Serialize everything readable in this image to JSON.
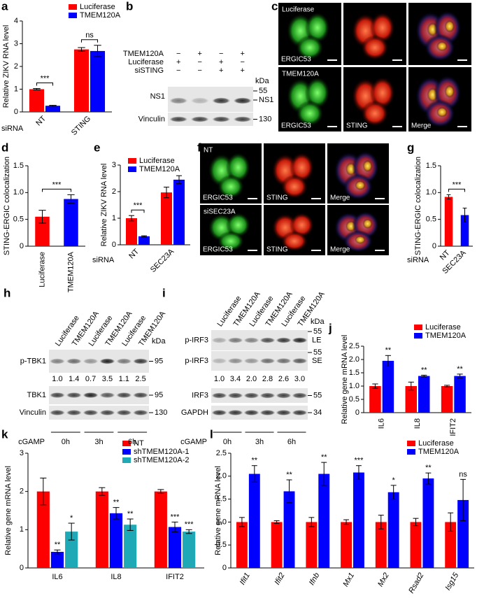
{
  "chart_data": [
    {
      "type": "bar",
      "panel": "a",
      "ylabel": "Relative ZIKV RNA level",
      "xlabel": "siRNA",
      "categories": [
        "NT",
        "STING"
      ],
      "series": [
        {
          "name": "Luciferase",
          "color": "#ff0000",
          "values": [
            1.0,
            2.75
          ],
          "errors": [
            0.03,
            0.08
          ]
        },
        {
          "name": "TMEM120A",
          "color": "#0000ff",
          "values": [
            0.27,
            2.68
          ],
          "errors": [
            0.02,
            0.25
          ]
        }
      ],
      "ylim": [
        0,
        4
      ],
      "yticks": [
        0,
        1,
        2,
        3,
        4
      ],
      "brackets": [
        "***",
        "ns"
      ]
    },
    {
      "type": "bar",
      "panel": "d",
      "ylabel": "STING-ERGIC colocalization",
      "categories": [
        "Luciferase",
        "TMEM120A"
      ],
      "values": [
        0.55,
        0.88
      ],
      "colors": [
        "#ff0000",
        "#0000ff"
      ],
      "errors": [
        0.12,
        0.08
      ],
      "ylim": [
        0,
        1.5
      ],
      "yticks": [
        0,
        0.5,
        {
          "value": 1,
          "label": "1.0"
        },
        1.5
      ],
      "bracket": "***"
    },
    {
      "type": "bar",
      "panel": "e",
      "ylabel": "Relative ZIKV RNA level",
      "xlabel": "siRNA",
      "categories": [
        "NT",
        "SEC23A"
      ],
      "series": [
        {
          "name": "Luciferase",
          "color": "#ff0000",
          "values": [
            1.0,
            1.97
          ],
          "errors": [
            0.1,
            0.2
          ]
        },
        {
          "name": "TMEM120A",
          "color": "#0000ff",
          "values": [
            0.32,
            2.45
          ],
          "errors": [
            0.02,
            0.15
          ]
        }
      ],
      "ylim": [
        0,
        3
      ],
      "yticks": [
        0,
        1,
        2,
        3
      ],
      "brackets": [
        "***"
      ]
    },
    {
      "type": "bar",
      "panel": "g",
      "ylabel": "STING-ERGIC colocalization",
      "xlabel": "siRNA",
      "categories": [
        "NT",
        "SEC23A"
      ],
      "values": [
        0.92,
        0.58
      ],
      "colors": [
        "#ff0000",
        "#0000ff"
      ],
      "errors": [
        0.04,
        0.13
      ],
      "ylim": [
        0,
        1.5
      ],
      "yticks": [
        0,
        0.5,
        {
          "value": 1,
          "label": "1.0"
        },
        1.5
      ],
      "bracket": "***"
    },
    {
      "type": "bar",
      "panel": "j",
      "ylabel": "Relative gene mRNA level",
      "categories": [
        "IL6",
        "IL8",
        "IFIT2"
      ],
      "series": [
        {
          "name": "Luciferase",
          "color": "#ff0000",
          "values": [
            1.0,
            1.0,
            1.0
          ],
          "errors": [
            0.08,
            0.15,
            0.03
          ]
        },
        {
          "name": "TMEM120A",
          "color": "#0000ff",
          "values": [
            1.95,
            1.38,
            1.38
          ],
          "errors": [
            0.2,
            0.03,
            0.07
          ],
          "stars": [
            "**",
            "**",
            "**"
          ]
        }
      ],
      "ylim": [
        0,
        2.5
      ],
      "yticks": [
        0,
        0.5,
        {
          "value": 1,
          "label": "1.0"
        },
        1.5,
        {
          "value": 2,
          "label": "2.0"
        },
        2.5
      ]
    },
    {
      "type": "bar",
      "panel": "k",
      "ylabel": "Relative gene mRNA level",
      "categories": [
        "IL6",
        "IL8",
        "IFIT2"
      ],
      "series": [
        {
          "name": "NT",
          "color": "#ff0000",
          "values": [
            2.0,
            2.0,
            2.0
          ],
          "errors": [
            0.35,
            0.1,
            0.05
          ]
        },
        {
          "name": "shTMEM120A-1",
          "color": "#0000ff",
          "values": [
            0.42,
            1.43,
            1.07
          ],
          "errors": [
            0.05,
            0.15,
            0.13
          ],
          "stars": [
            "**",
            "**",
            "***"
          ]
        },
        {
          "name": "shTMEM120A-2",
          "color": "#1fa8b5",
          "values": [
            0.95,
            1.13,
            0.95
          ],
          "errors": [
            0.22,
            0.15,
            0.05
          ],
          "stars": [
            "*",
            "**",
            "***"
          ]
        }
      ],
      "ylim": [
        0,
        3
      ],
      "yticks": [
        0,
        1,
        2,
        3
      ]
    },
    {
      "type": "bar",
      "panel": "l",
      "ylabel": "Relative gene mRNA level",
      "italic_categories": true,
      "categories": [
        "Ifit1",
        "Ifit2",
        "Ifnb",
        "Mx1",
        "Mx2",
        "Rsad2",
        "Isg15"
      ],
      "series": [
        {
          "name": "Luciferase",
          "color": "#ff0000",
          "values": [
            1,
            1,
            1,
            1,
            1,
            1,
            1
          ],
          "errors": [
            0.1,
            0.03,
            0.1,
            0.05,
            0.15,
            0.08,
            0.2
          ]
        },
        {
          "name": "TMEM120A",
          "color": "#0000ff",
          "values": [
            2.05,
            1.67,
            2.05,
            2.08,
            1.65,
            1.95,
            1.48
          ],
          "errors": [
            0.18,
            0.25,
            0.25,
            0.15,
            0.15,
            0.12,
            0.45
          ],
          "stars": [
            "**",
            "**",
            "**",
            "***",
            "*",
            "**",
            "ns"
          ]
        }
      ],
      "ylim": [
        0,
        2.5
      ],
      "yticks": [
        0,
        0.5,
        {
          "value": 1,
          "label": "1.0"
        },
        1.5,
        {
          "value": 2,
          "label": "2.0"
        },
        2.5
      ]
    }
  ],
  "blot_b": {
    "panel": "b",
    "conditions": [
      {
        "label": "TMEM120A",
        "signs": [
          "−",
          "+",
          "−",
          "+"
        ]
      },
      {
        "label": "Luciferase",
        "signs": [
          "+",
          "−",
          "+",
          "−"
        ]
      },
      {
        "label": "siSTING",
        "signs": [
          "−",
          "−",
          "+",
          "+"
        ]
      }
    ],
    "unit": "kDa",
    "blots": [
      {
        "label": "NS1",
        "markers": [
          "55",
          "NS1"
        ]
      },
      {
        "label": "Vinculin",
        "markers": [
          "130"
        ]
      }
    ]
  },
  "image_c": {
    "panel": "c",
    "rows": [
      {
        "condition": "Luciferase",
        "channels": [
          "ERGIC53"
        ]
      },
      {
        "condition": "TMEM120A",
        "channels": [
          "ERGIC53",
          "STING",
          "Merge"
        ]
      }
    ]
  },
  "image_f": {
    "panel": "f",
    "rows": [
      {
        "condition": "NT",
        "channels": [
          "ERGIC53",
          "STING",
          "Merge"
        ]
      },
      {
        "condition": "siSEC23A",
        "channels": [
          "ERGIC53",
          "STING",
          "Merge"
        ]
      }
    ]
  },
  "blot_h": {
    "panel": "h",
    "lanes": [
      "Luciferase",
      "TMEM120A",
      "Luciferase",
      "TMEM120A",
      "Luciferase",
      "TMEM120A"
    ],
    "unit": "kDa",
    "blots": [
      {
        "label": "p-TBK1",
        "markers": [
          "95"
        ]
      },
      {
        "label": "TBK1",
        "markers": [
          "95"
        ]
      },
      {
        "label": "Vinculin",
        "markers": [
          "130"
        ]
      }
    ],
    "quantification": [
      "1.0",
      "1.4",
      "0.7",
      "3.5",
      "1.1",
      "2.5"
    ],
    "treatment": "cGAMP",
    "times": [
      "0h",
      "3h",
      "6h"
    ]
  },
  "blot_i": {
    "panel": "i",
    "lanes": [
      "Luciferase",
      "TMEM120A",
      "Luciferase",
      "TMEM120A",
      "Luciferase",
      "TMEM120A"
    ],
    "unit": "kDa",
    "blots": [
      {
        "label": "p-IRF3",
        "markers": [
          "55"
        ],
        "exposure": "LE"
      },
      {
        "label": "p-IRF3",
        "markers": [
          "55"
        ],
        "exposure": "SE"
      },
      {
        "label": "IRF3",
        "markers": [
          "55"
        ]
      },
      {
        "label": "GAPDH",
        "markers": [
          "34"
        ]
      }
    ],
    "quantification": [
      "1.0",
      "3.4",
      "2.0",
      "2.8",
      "2.6",
      "3.0"
    ],
    "treatment": "cGAMP",
    "times": [
      "0h",
      "3h",
      "6h"
    ]
  }
}
